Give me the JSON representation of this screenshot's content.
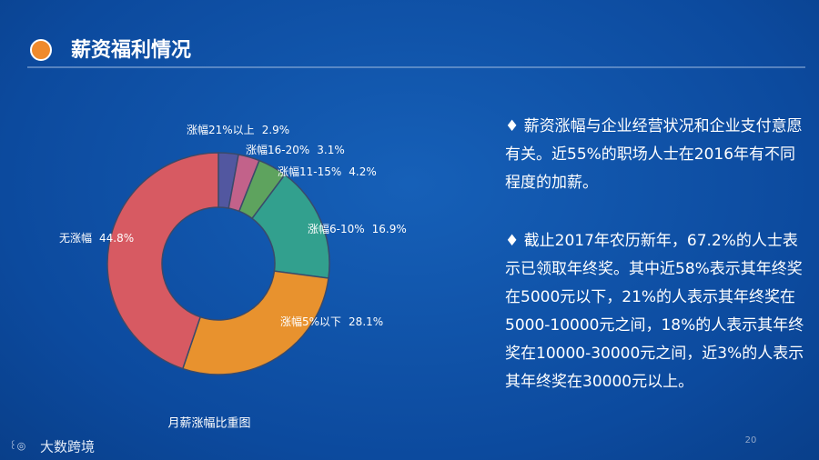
{
  "header": {
    "title": "薪资福利情况"
  },
  "paragraphs": [
    "♦ 薪资涨幅与企业经营状况和企业支付意愿有关。近55%的职场人士在2016年有不同程度的加薪。",
    "♦ 截止2017年农历新年，67.2%的人士表示已领取年终奖。其中近58%表示其年终奖在5000元以下，21%的人表示其年终奖在5000-10000元之间，18%的人表示其年终奖在10000-30000元之间，近3%的人表示其年终奖在30000元以上。"
  ],
  "footer": {
    "page": "20",
    "logo": "大数跨境"
  },
  "chart_data": {
    "type": "donut",
    "title": "月薪涨幅比重图",
    "categories": [
      "涨幅21%以上",
      "涨幅16-20%",
      "涨幅11-15%",
      "涨幅6-10%",
      "涨幅5%以下",
      "无涨幅"
    ],
    "values": [
      2.9,
      3.1,
      4.2,
      16.9,
      28.1,
      44.8
    ],
    "value_labels": [
      "2.9%",
      "3.1%",
      "4.2%",
      "16.9%",
      "28.1%",
      "44.8%"
    ],
    "colors": [
      "#5257a0",
      "#c2628a",
      "#5ea35e",
      "#32a08e",
      "#e8922e",
      "#d75a62"
    ]
  }
}
